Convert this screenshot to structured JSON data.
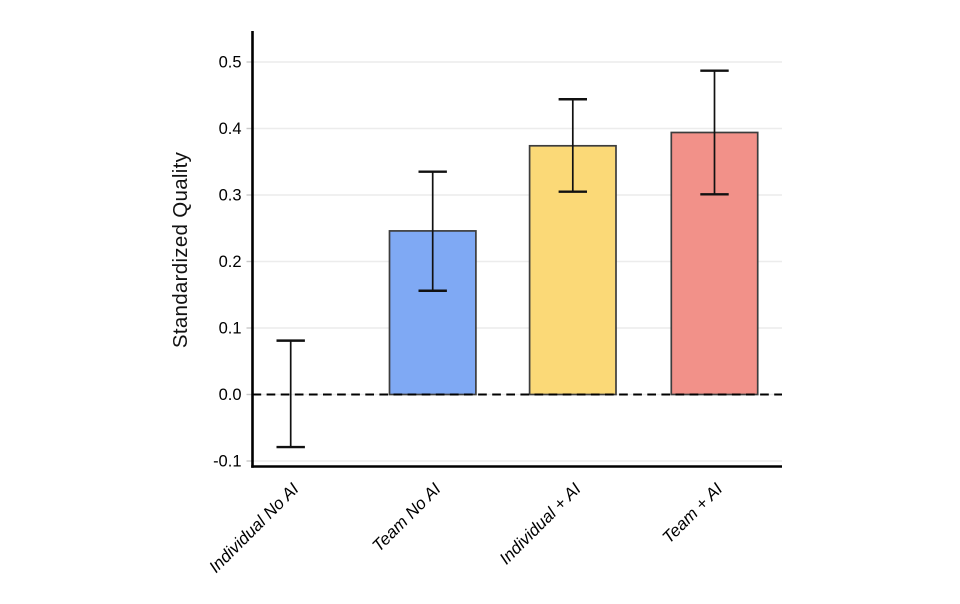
{
  "page": {
    "background": "#FFFFFF"
  },
  "chart_data": {
    "type": "bar",
    "title": "",
    "ylabel": "Standardized Quality",
    "xlabel": "",
    "categories": [
      "Individual No AI",
      "Team No AI",
      "Individual + AI",
      "Team + AI"
    ],
    "values": [
      0.0,
      0.246,
      0.374,
      0.394
    ],
    "error_bars": {
      "low": [
        -0.079,
        0.156,
        0.305,
        0.301
      ],
      "high": [
        0.081,
        0.335,
        0.444,
        0.487
      ]
    },
    "bar_colors": [
      "none",
      "#7FA9F4",
      "#FBD977",
      "#F29189"
    ],
    "bar_border_color": "#3D3D3D",
    "error_bar_color": "#111111",
    "yticks": [
      -0.1,
      0.0,
      0.1,
      0.2,
      0.3,
      0.4,
      0.5
    ],
    "ytick_labels": [
      "-0.1",
      "0.0",
      "0.1",
      "0.2",
      "0.3",
      "0.4",
      "0.5"
    ],
    "ylim": [
      -0.112,
      0.546
    ],
    "grid": true,
    "gridline_color": "#ECECEC",
    "axis_color": "#000000",
    "zero_line": {
      "value": 0.0,
      "style": "dashed",
      "color": "#000000"
    },
    "legend": "none",
    "xtick_style": "italic, rotated 45deg"
  }
}
